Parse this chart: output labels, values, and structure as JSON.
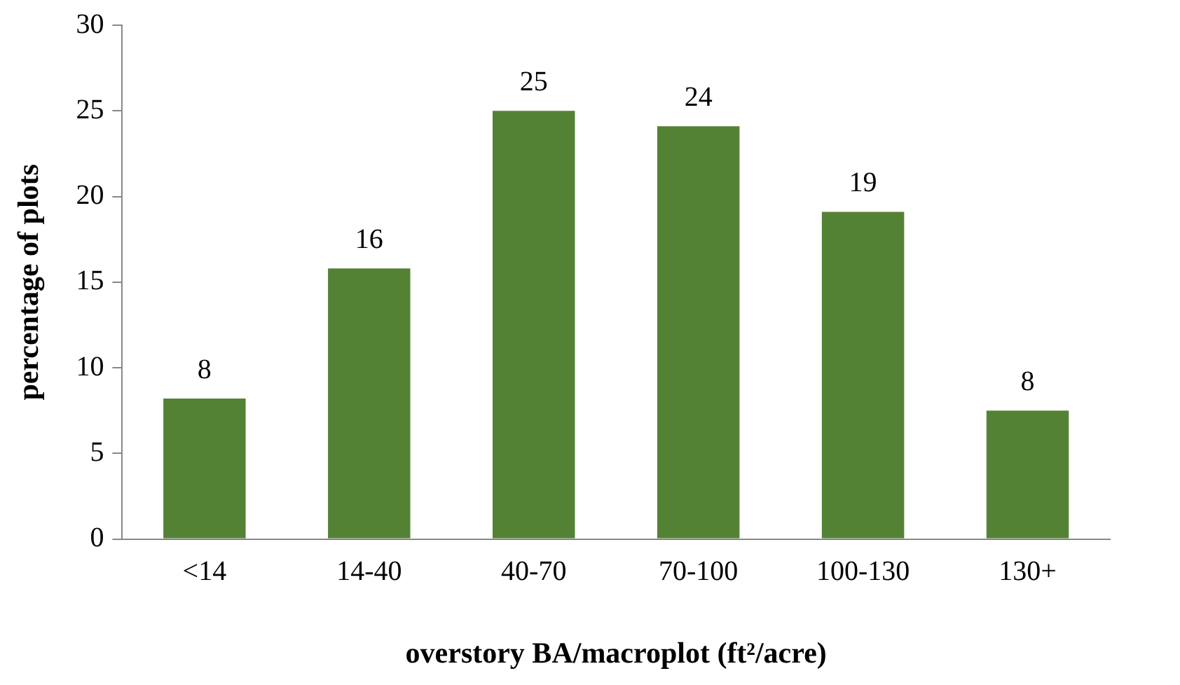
{
  "chart_data": {
    "type": "bar",
    "xlabel": "overstory BA/macroplot (ft²/acre)",
    "ylabel": "percentage of plots",
    "categories": [
      "<14",
      "14-40",
      "40-70",
      "70-100",
      "100-130",
      "130+"
    ],
    "values": [
      8.2,
      15.8,
      25,
      24.1,
      19.1,
      7.5
    ],
    "value_labels": [
      "8",
      "16",
      "25",
      "24",
      "19",
      "8"
    ],
    "color": "#548235",
    "ylim": [
      0,
      30
    ],
    "yticks": [
      0,
      5,
      10,
      15,
      20,
      25,
      30
    ],
    "grid": false,
    "legend": false
  }
}
